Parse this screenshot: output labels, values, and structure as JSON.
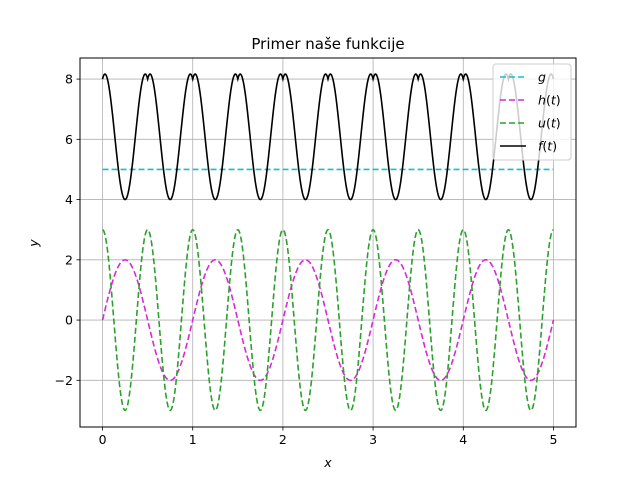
{
  "chart_data": {
    "type": "line",
    "title": "Primer naše funkcije",
    "xlabel": "x",
    "ylabel": "y",
    "xlim": [
      -0.25,
      5.25
    ],
    "ylim": [
      -3.55,
      8.7
    ],
    "xticks": [
      0,
      1,
      2,
      3,
      4,
      5
    ],
    "yticks": [
      -2,
      0,
      2,
      4,
      6,
      8
    ],
    "xtick_labels": [
      "0",
      "1",
      "2",
      "3",
      "4",
      "5"
    ],
    "ytick_labels": [
      "−2",
      "0",
      "2",
      "4",
      "6",
      "8"
    ],
    "grid": true,
    "legend_position": "top-right",
    "x_domain": [
      0,
      5
    ],
    "series": [
      {
        "name": "g",
        "label": "g",
        "color": "#17becf",
        "dash": "dashed",
        "expression": "5"
      },
      {
        "name": "h(t)",
        "label": "h(t)",
        "color": "#d62ad6",
        "dash": "dashed",
        "expression": "2 sin(2πt)"
      },
      {
        "name": "u(t)",
        "label": "u(t)",
        "color": "#2ca02c",
        "dash": "dashed",
        "expression": "3 cos(4πt)"
      },
      {
        "name": "f(t)",
        "label": "f(t)",
        "color": "#000000",
        "dash": "solid",
        "expression": "|h(t)| + u(t) + g"
      }
    ]
  }
}
